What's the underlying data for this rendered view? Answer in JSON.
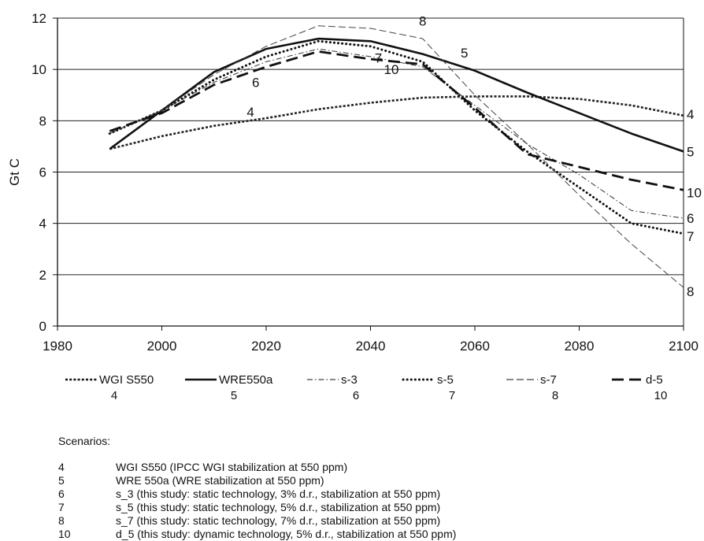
{
  "chart_data": {
    "type": "line",
    "ylabel": "Gt C",
    "xlim": [
      1980,
      2100
    ],
    "ylim": [
      0,
      12
    ],
    "xticks": [
      1980,
      2000,
      2020,
      2040,
      2060,
      2080,
      2100
    ],
    "yticks": [
      0,
      2,
      4,
      6,
      8,
      10,
      12
    ],
    "grid": "horizontal",
    "series": [
      {
        "name": "WGI S550",
        "id": "4",
        "style": "dotted-heavy",
        "color": "#222222",
        "x": [
          1990,
          2000,
          2010,
          2020,
          2030,
          2040,
          2050,
          2060,
          2070,
          2080,
          2090,
          2100
        ],
        "y": [
          6.9,
          7.4,
          7.8,
          8.1,
          8.45,
          8.7,
          8.9,
          8.95,
          8.95,
          8.85,
          8.6,
          8.2
        ]
      },
      {
        "name": "WRE550a",
        "id": "5",
        "style": "solid",
        "color": "#111111",
        "x": [
          1990,
          2000,
          2010,
          2020,
          2030,
          2040,
          2050,
          2060,
          2070,
          2080,
          2090,
          2100
        ],
        "y": [
          6.9,
          8.4,
          9.9,
          10.8,
          11.2,
          11.1,
          10.6,
          9.95,
          9.1,
          8.3,
          7.5,
          6.8
        ]
      },
      {
        "name": "s-3",
        "id": "6",
        "style": "dash-dot",
        "color": "#333333",
        "x": [
          1990,
          2000,
          2010,
          2020,
          2030,
          2040,
          2050,
          2060,
          2070,
          2080,
          2090,
          2100
        ],
        "y": [
          7.5,
          8.4,
          9.5,
          10.3,
          10.8,
          10.5,
          10.1,
          8.6,
          7.1,
          5.9,
          4.5,
          4.2
        ]
      },
      {
        "name": "s-5",
        "id": "7",
        "style": "dotted",
        "color": "#111111",
        "x": [
          1990,
          2000,
          2010,
          2020,
          2030,
          2040,
          2050,
          2060,
          2070,
          2080,
          2090,
          2100
        ],
        "y": [
          7.5,
          8.4,
          9.6,
          10.5,
          11.1,
          10.9,
          10.3,
          8.4,
          6.8,
          5.4,
          4.0,
          3.6
        ]
      },
      {
        "name": "s-7",
        "id": "8",
        "style": "thin-dash",
        "color": "#444444",
        "x": [
          1990,
          2000,
          2010,
          2020,
          2030,
          2040,
          2050,
          2060,
          2070,
          2080,
          2090,
          2100
        ],
        "y": [
          7.5,
          8.4,
          9.8,
          10.9,
          11.7,
          11.6,
          11.2,
          9.0,
          7.1,
          5.1,
          3.2,
          1.5
        ]
      },
      {
        "name": "d-5",
        "id": "10",
        "style": "long-dash",
        "color": "#111111",
        "x": [
          1990,
          2000,
          2010,
          2020,
          2030,
          2040,
          2050,
          2060,
          2070,
          2080,
          2090,
          2100
        ],
        "y": [
          7.6,
          8.3,
          9.4,
          10.1,
          10.7,
          10.4,
          10.2,
          8.5,
          6.7,
          6.2,
          5.7,
          5.3
        ]
      }
    ],
    "inline_labels": [
      {
        "text": "4",
        "x": 2017,
        "y": 8.35
      },
      {
        "text": "6",
        "x": 2018,
        "y": 9.5
      },
      {
        "text": "10",
        "x": 2044,
        "y": 10.0
      },
      {
        "text": "7",
        "x": 2041.5,
        "y": 10.45
      },
      {
        "text": "8",
        "x": 2050,
        "y": 11.9
      },
      {
        "text": "5",
        "x": 2058,
        "y": 10.65
      }
    ],
    "end_labels": [
      {
        "text": "4",
        "y": 8.25
      },
      {
        "text": "5",
        "y": 6.8
      },
      {
        "text": "10",
        "y": 5.2
      },
      {
        "text": "6",
        "y": 4.2
      },
      {
        "text": "7",
        "y": 3.5
      },
      {
        "text": "8",
        "y": 1.35
      }
    ],
    "legend": [
      {
        "name": "WGI S550",
        "number": "4",
        "style": "dotted-heavy"
      },
      {
        "name": "WRE550a",
        "number": "5",
        "style": "solid"
      },
      {
        "name": "s-3",
        "number": "6",
        "style": "dash-dot"
      },
      {
        "name": "s-5",
        "number": "7",
        "style": "dotted"
      },
      {
        "name": "s-7",
        "number": "8",
        "style": "thin-dash"
      },
      {
        "name": "d-5",
        "number": "10",
        "style": "long-dash"
      }
    ],
    "legend_placement": "below-chart"
  },
  "scenarios": {
    "title": "Scenarios:",
    "items": [
      {
        "num": "4",
        "text": "WGI S550 (IPCC WGI stabilization at 550 ppm)"
      },
      {
        "num": "5",
        "text": "WRE 550a (WRE stabilization at 550 ppm)"
      },
      {
        "num": "6",
        "text": "s_3 (this study: static technology, 3% d.r., stabilization at 550 ppm)"
      },
      {
        "num": "7",
        "text": "s_5 (this study: static technology, 5% d.r., stabilization at 550 ppm)"
      },
      {
        "num": "8",
        "text": "s_7 (this study: static technology, 7% d.r., stabilization at 550 ppm)"
      },
      {
        "num": "10",
        "text": "d_5 (this study: dynamic technology, 5% d.r., stabilization at 550 ppm)"
      }
    ]
  }
}
